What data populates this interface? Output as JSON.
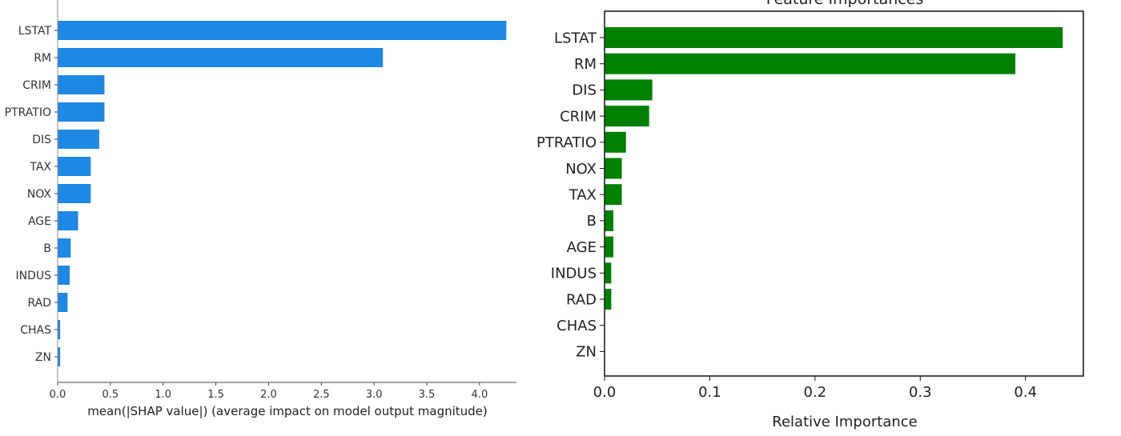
{
  "chart_data": [
    {
      "type": "bar",
      "orientation": "horizontal",
      "title": "",
      "categories": [
        "LSTAT",
        "RM",
        "CRIM",
        "PTRATIO",
        "DIS",
        "TAX",
        "NOX",
        "AGE",
        "B",
        "INDUS",
        "RAD",
        "CHAS",
        "ZN"
      ],
      "values": [
        4.25,
        3.08,
        0.44,
        0.44,
        0.39,
        0.31,
        0.31,
        0.19,
        0.12,
        0.11,
        0.09,
        0.02,
        0.02
      ],
      "xlabel": "mean(|SHAP value|) (average impact on model output magnitude)",
      "ylabel": "",
      "xlim": [
        0,
        4.35
      ],
      "xticks": [
        "0.0",
        "0.5",
        "1.0",
        "1.5",
        "2.0",
        "2.5",
        "3.0",
        "3.5",
        "4.0"
      ],
      "bar_color": "#1e88e5",
      "grid": false
    },
    {
      "type": "bar",
      "orientation": "horizontal",
      "title": "Feature Importances",
      "categories": [
        "LSTAT",
        "RM",
        "DIS",
        "CRIM",
        "PTRATIO",
        "NOX",
        "TAX",
        "B",
        "AGE",
        "INDUS",
        "RAD",
        "CHAS",
        "ZN"
      ],
      "values": [
        0.435,
        0.39,
        0.045,
        0.042,
        0.02,
        0.016,
        0.016,
        0.008,
        0.008,
        0.006,
        0.006,
        0.0,
        0.0
      ],
      "xlabel": "Relative Importance",
      "ylabel": "",
      "xlim": [
        0,
        0.455
      ],
      "xticks": [
        "0.0",
        "0.1",
        "0.2",
        "0.3",
        "0.4"
      ],
      "bar_color": "#008000",
      "grid": false
    }
  ]
}
